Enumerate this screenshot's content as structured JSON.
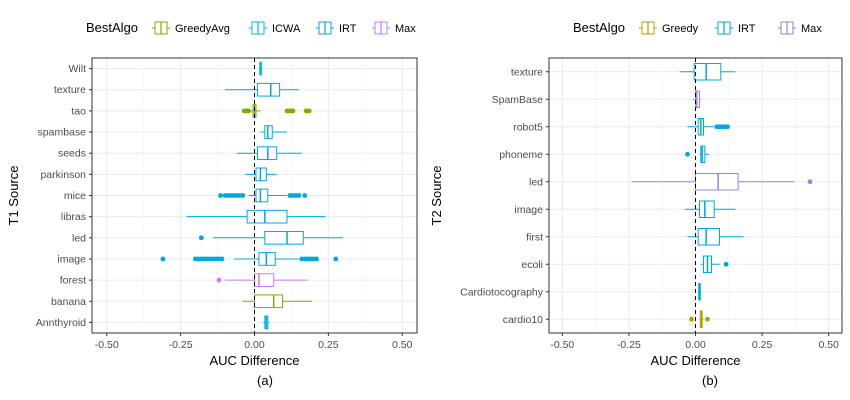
{
  "chart_data": [
    {
      "type": "boxplot",
      "caption": "(a)",
      "xlabel": "AUC Difference",
      "ylabel": "T1 Source",
      "xlim": [
        -0.55,
        0.55
      ],
      "xticks": [
        -0.5,
        -0.25,
        0.0,
        0.25,
        0.5
      ],
      "xtick_labels": [
        "-0.50",
        "-0.25",
        "0.00",
        "0.25",
        "0.50"
      ],
      "vline": 0,
      "grid": true,
      "legend": {
        "title": "BestAlgo",
        "position": "top",
        "entries": [
          {
            "name": "GreedyAvg",
            "color": "#7cae00"
          },
          {
            "name": "ICWA",
            "color": "#00bfc4"
          },
          {
            "name": "IRT",
            "color": "#00a9dd"
          },
          {
            "name": "Max",
            "color": "#c77cff"
          }
        ]
      },
      "categories": [
        "Wilt",
        "texture",
        "tao",
        "spambase",
        "seeds",
        "parkinson",
        "mice",
        "libras",
        "led",
        "image",
        "forest",
        "banana",
        "Annthyroid"
      ],
      "boxes": [
        {
          "category": "Wilt",
          "algo": "ICWA",
          "min": 0.015,
          "q1": 0.018,
          "median": 0.02,
          "q3": 0.024,
          "max": 0.026,
          "outliers": []
        },
        {
          "category": "texture",
          "algo": "IRT",
          "min": -0.1,
          "q1": 0.01,
          "median": 0.055,
          "q3": 0.085,
          "max": 0.15,
          "outliers": []
        },
        {
          "category": "tao",
          "algo": "GreedyAvg",
          "min": -0.02,
          "q1": -0.005,
          "median": 0.0,
          "q3": 0.005,
          "max": 0.02,
          "outliers": [
            -0.035,
            -0.03,
            -0.025,
            -0.02,
            0.11,
            0.12,
            0.125,
            0.13,
            0.175,
            0.185
          ]
        },
        {
          "category": "spambase",
          "algo": "IRT",
          "min": 0.02,
          "q1": 0.035,
          "median": 0.045,
          "q3": 0.06,
          "max": 0.11,
          "outliers": []
        },
        {
          "category": "seeds",
          "algo": "IRT",
          "min": -0.06,
          "q1": 0.01,
          "median": 0.045,
          "q3": 0.075,
          "max": 0.16,
          "outliers": []
        },
        {
          "category": "parkinson",
          "algo": "IRT",
          "min": -0.03,
          "q1": 0.005,
          "median": 0.02,
          "q3": 0.04,
          "max": 0.075,
          "outliers": []
        },
        {
          "category": "mice",
          "algo": "IRT",
          "min": -0.02,
          "q1": 0.005,
          "median": 0.02,
          "q3": 0.045,
          "max": 0.11,
          "outliers": [
            -0.115,
            -0.1,
            -0.09,
            -0.08,
            -0.07,
            -0.06,
            -0.05,
            -0.04,
            0.12,
            0.13,
            0.14,
            0.15,
            0.17
          ]
        },
        {
          "category": "libras",
          "algo": "IRT",
          "min": -0.23,
          "q1": -0.025,
          "median": 0.035,
          "q3": 0.11,
          "max": 0.24,
          "outliers": []
        },
        {
          "category": "led",
          "algo": "IRT",
          "min": -0.14,
          "q1": 0.035,
          "median": 0.11,
          "q3": 0.165,
          "max": 0.3,
          "outliers": [
            -0.18
          ]
        },
        {
          "category": "image",
          "algo": "IRT",
          "min": -0.07,
          "q1": 0.015,
          "median": 0.04,
          "q3": 0.07,
          "max": 0.15,
          "outliers": [
            -0.31,
            -0.2,
            -0.19,
            -0.18,
            -0.17,
            -0.16,
            -0.15,
            -0.14,
            -0.13,
            -0.12,
            -0.11,
            0.16,
            0.17,
            0.18,
            0.19,
            0.2,
            0.21,
            0.275
          ]
        },
        {
          "category": "forest",
          "algo": "Max",
          "min": -0.1,
          "q1": 0.0,
          "median": 0.015,
          "q3": 0.065,
          "max": 0.18,
          "outliers": [
            -0.12
          ]
        },
        {
          "category": "banana",
          "algo": "GreedyAvg",
          "min": -0.04,
          "q1": 0.0,
          "median": 0.065,
          "q3": 0.095,
          "max": 0.195,
          "outliers": []
        },
        {
          "category": "Annthyroid",
          "algo": "IRT",
          "min": 0.03,
          "q1": 0.035,
          "median": 0.04,
          "q3": 0.045,
          "max": 0.05,
          "outliers": []
        }
      ]
    },
    {
      "type": "boxplot",
      "caption": "(b)",
      "xlabel": "AUC Difference",
      "ylabel": "T2 Source",
      "xlim": [
        -0.55,
        0.55
      ],
      "xticks": [
        -0.5,
        -0.25,
        0.0,
        0.25,
        0.5
      ],
      "xtick_labels": [
        "-0.50",
        "-0.25",
        "0.00",
        "0.25",
        "0.50"
      ],
      "vline": 0,
      "grid": true,
      "legend": {
        "title": "BestAlgo",
        "position": "top",
        "entries": [
          {
            "name": "Greedy",
            "color": "#b79f00"
          },
          {
            "name": "IRT",
            "color": "#00a9dd"
          },
          {
            "name": "Max",
            "color": "#9e80e8"
          }
        ]
      },
      "categories": [
        "texture",
        "SpamBase",
        "robot5",
        "phoneme",
        "led",
        "image",
        "first",
        "ecoli",
        "Cardiotocography",
        "cardio10"
      ],
      "boxes": [
        {
          "category": "texture",
          "algo": "IRT",
          "min": -0.06,
          "q1": -0.005,
          "median": 0.04,
          "q3": 0.095,
          "max": 0.15,
          "outliers": []
        },
        {
          "category": "SpamBase",
          "algo": "Max",
          "min": -0.01,
          "q1": 0.0,
          "median": 0.005,
          "q3": 0.015,
          "max": 0.02,
          "outliers": []
        },
        {
          "category": "robot5",
          "algo": "IRT",
          "min": -0.03,
          "q1": 0.01,
          "median": 0.02,
          "q3": 0.03,
          "max": 0.07,
          "outliers": [
            0.08,
            0.09,
            0.1,
            0.105,
            0.11,
            0.12
          ]
        },
        {
          "category": "phoneme",
          "algo": "IRT",
          "min": 0.015,
          "q1": 0.02,
          "median": 0.025,
          "q3": 0.035,
          "max": 0.05,
          "outliers": [
            -0.03
          ]
        },
        {
          "category": "led",
          "algo": "Max",
          "min": -0.24,
          "q1": 0.0,
          "median": 0.085,
          "q3": 0.16,
          "max": 0.37,
          "outliers": [
            0.43
          ]
        },
        {
          "category": "image",
          "algo": "IRT",
          "min": -0.04,
          "q1": 0.015,
          "median": 0.035,
          "q3": 0.07,
          "max": 0.15,
          "outliers": []
        },
        {
          "category": "first",
          "algo": "IRT",
          "min": -0.03,
          "q1": 0.01,
          "median": 0.04,
          "q3": 0.09,
          "max": 0.18,
          "outliers": []
        },
        {
          "category": "ecoli",
          "algo": "IRT",
          "min": 0.02,
          "q1": 0.03,
          "median": 0.045,
          "q3": 0.06,
          "max": 0.09,
          "outliers": [
            0.115
          ]
        },
        {
          "category": "Cardiotocography",
          "algo": "IRT",
          "min": 0.01,
          "q1": 0.012,
          "median": 0.015,
          "q3": 0.018,
          "max": 0.02,
          "outliers": []
        },
        {
          "category": "cardio10",
          "algo": "Greedy",
          "min": 0.015,
          "q1": 0.018,
          "median": 0.022,
          "q3": 0.025,
          "max": 0.03,
          "outliers": [
            -0.015,
            0.045
          ]
        }
      ]
    }
  ]
}
